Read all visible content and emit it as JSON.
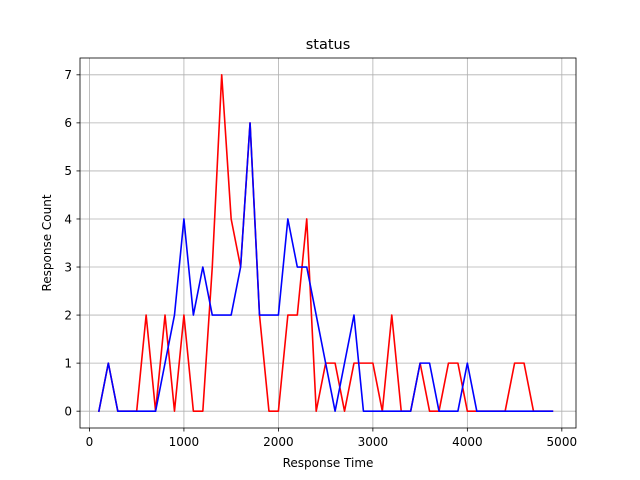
{
  "chart_data": {
    "type": "line",
    "title": "status",
    "xlabel": "Response Time",
    "ylabel": "Response Count",
    "xlim": [
      -100,
      5150
    ],
    "ylim": [
      -0.35,
      7.35
    ],
    "xticks": [
      0,
      1000,
      2000,
      3000,
      4000,
      5000
    ],
    "xtick_labels": [
      "0",
      "1000",
      "2000",
      "3000",
      "4000",
      "5000"
    ],
    "yticks": [
      0,
      1,
      2,
      3,
      4,
      5,
      6,
      7
    ],
    "ytick_labels": [
      "0",
      "1",
      "2",
      "3",
      "4",
      "5",
      "6",
      "7"
    ],
    "grid": true,
    "x": [
      100,
      200,
      300,
      400,
      500,
      600,
      700,
      800,
      900,
      1000,
      1100,
      1200,
      1300,
      1400,
      1500,
      1600,
      1700,
      1800,
      1900,
      2000,
      2100,
      2200,
      2300,
      2400,
      2500,
      2600,
      2700,
      2800,
      2900,
      3000,
      3100,
      3200,
      3300,
      3400,
      3500,
      3600,
      3700,
      3800,
      3900,
      4000,
      4100,
      4200,
      4300,
      4400,
      4500,
      4600,
      4700,
      4800,
      4900
    ],
    "series": [
      {
        "color": "#ff0000",
        "values": [
          0,
          1,
          0,
          0,
          0,
          2,
          0,
          2,
          0,
          2,
          0,
          0,
          3,
          7,
          4,
          3,
          6,
          2,
          0,
          0,
          2,
          2,
          4,
          0,
          1,
          1,
          0,
          1,
          1,
          1,
          0,
          2,
          0,
          0,
          1,
          0,
          0,
          1,
          1,
          0,
          0,
          0,
          0,
          0,
          1,
          1,
          0,
          0,
          0
        ]
      },
      {
        "color": "#0000ff",
        "values": [
          0,
          1,
          0,
          0,
          0,
          0,
          0,
          1,
          2,
          4,
          2,
          3,
          2,
          2,
          2,
          3,
          6,
          2,
          2,
          2,
          4,
          3,
          3,
          2,
          1,
          0,
          1,
          2,
          0,
          0,
          0,
          0,
          0,
          0,
          1,
          1,
          0,
          0,
          0,
          1,
          0,
          0,
          0,
          0,
          0,
          0,
          0,
          0,
          0
        ]
      }
    ]
  }
}
